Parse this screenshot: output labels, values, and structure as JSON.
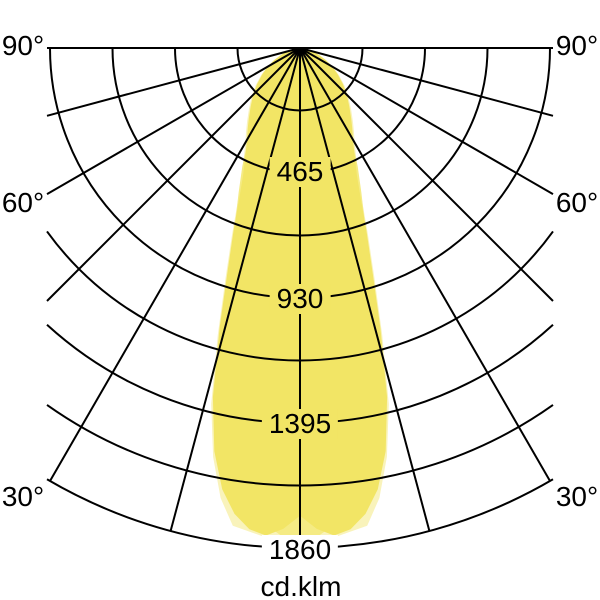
{
  "chart_data": {
    "type": "polar_photometric",
    "unit": "cd.klm",
    "angle_grid_step_deg": 15,
    "angle_labels": [
      {
        "angle_deg": 90,
        "label": "90°"
      },
      {
        "angle_deg": 60,
        "label": "60°"
      },
      {
        "angle_deg": 30,
        "label": "30°"
      }
    ],
    "radial_ticks": [
      465,
      930,
      1395,
      1860
    ],
    "radial_tick_labels": [
      "465",
      "930",
      "1395",
      "1860"
    ],
    "radial_max": 1860,
    "arc_count": 8,
    "arc_step_cd": 232.5,
    "grid_color": "#000000",
    "background": "#ffffff",
    "legend": "none",
    "series": [
      {
        "name": "beam-pale-outer",
        "color": "#f9f3bb",
        "points": [
          [
            0,
            1800
          ],
          [
            4,
            1825
          ],
          [
            8,
            1795
          ],
          [
            10,
            1700
          ],
          [
            12,
            1555
          ],
          [
            14,
            1365
          ],
          [
            16,
            1110
          ],
          [
            18,
            893
          ],
          [
            20,
            740
          ],
          [
            22,
            620
          ],
          [
            24,
            536
          ],
          [
            26,
            483
          ],
          [
            28,
            441
          ],
          [
            30,
            406
          ],
          [
            33,
            368
          ],
          [
            36,
            334
          ],
          [
            40,
            295
          ],
          [
            45,
            254
          ],
          [
            50,
            215
          ],
          [
            55,
            177
          ],
          [
            60,
            143
          ],
          [
            65,
            108
          ],
          [
            70,
            77
          ],
          [
            75,
            50
          ],
          [
            80,
            28
          ],
          [
            85,
            12
          ],
          [
            90,
            0
          ]
        ]
      },
      {
        "name": "beam-medium-center",
        "color": "#f5eb84",
        "points": [
          [
            0,
            1840
          ],
          [
            2,
            1820
          ],
          [
            4,
            1780
          ],
          [
            6,
            1650
          ],
          [
            8,
            1480
          ],
          [
            10,
            1320
          ],
          [
            12,
            1180
          ],
          [
            14,
            1050
          ],
          [
            16,
            930
          ],
          [
            18,
            820
          ],
          [
            20,
            710
          ],
          [
            23,
            585
          ],
          [
            26,
            490
          ],
          [
            30,
            380
          ],
          [
            35,
            315
          ],
          [
            40,
            262
          ],
          [
            45,
            220
          ],
          [
            50,
            182
          ],
          [
            55,
            145
          ],
          [
            60,
            115
          ],
          [
            65,
            88
          ],
          [
            70,
            63
          ],
          [
            75,
            42
          ],
          [
            80,
            23
          ],
          [
            85,
            10
          ],
          [
            90,
            0
          ]
        ]
      },
      {
        "name": "beam-main",
        "color": "#f2e565",
        "points": [
          [
            0,
            1740
          ],
          [
            2,
            1790
          ],
          [
            4,
            1818
          ],
          [
            6,
            1800
          ],
          [
            8,
            1750
          ],
          [
            10,
            1667
          ],
          [
            12,
            1533
          ],
          [
            14,
            1339
          ],
          [
            16,
            1086
          ],
          [
            18,
            870
          ],
          [
            20,
            722
          ],
          [
            22,
            603
          ],
          [
            24,
            521
          ],
          [
            26,
            469
          ],
          [
            28,
            428
          ],
          [
            30,
            394
          ],
          [
            33,
            357
          ],
          [
            36,
            324
          ],
          [
            40,
            286
          ],
          [
            45,
            246
          ],
          [
            50,
            208
          ],
          [
            55,
            171
          ],
          [
            60,
            138
          ],
          [
            65,
            104
          ],
          [
            70,
            74
          ],
          [
            75,
            48
          ],
          [
            80,
            26
          ],
          [
            85,
            11
          ],
          [
            90,
            0
          ]
        ]
      }
    ]
  },
  "labels": {
    "angle_90": "90°",
    "angle_60": "60°",
    "angle_30": "30°",
    "tick_465": "465",
    "tick_930": "930",
    "tick_1395": "1395",
    "tick_1860": "1860",
    "unit": "cd.klm"
  }
}
